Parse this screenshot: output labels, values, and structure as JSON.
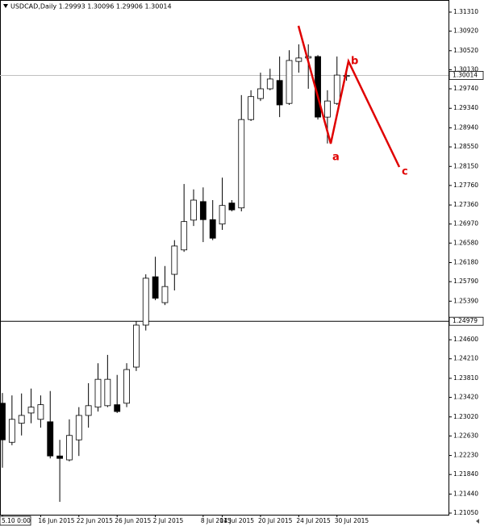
{
  "chart_data": {
    "type": "candlestick",
    "title": "USDCAD,Daily 1.29993 1.30096 1.29906 1.30014",
    "categories": [
      "5.10 0:00",
      null,
      null,
      null,
      "16 Jun 2015",
      null,
      null,
      null,
      "22 Jun 2015",
      null,
      null,
      null,
      "26 Jun 2015",
      null,
      null,
      null,
      "2 Jul 2015",
      null,
      null,
      null,
      null,
      "8 Jul 2015",
      null,
      "14 Jul 2015",
      null,
      null,
      null,
      "20 Jul 2015",
      null,
      null,
      null,
      "24 Jul 2015",
      null,
      null,
      null,
      "30 Jul 2015",
      null
    ],
    "open": [
      1.233,
      1.225,
      1.2289,
      1.231,
      1.2297,
      1.2292,
      1.2222,
      1.2214,
      1.2255,
      1.2305,
      1.2322,
      1.2325,
      1.2327,
      1.233,
      1.2404,
      1.249,
      1.2589,
      1.2536,
      1.2594,
      1.2644,
      1.2705,
      1.2743,
      1.2706,
      1.2697,
      1.274,
      1.273,
      1.2911,
      1.2954,
      1.2974,
      1.2991,
      1.2944,
      1.303,
      1.3037,
      1.304,
      1.2916,
      1.2944,
      1.29993
    ],
    "high": [
      1.2351,
      1.2346,
      1.235,
      1.236,
      1.2346,
      1.2355,
      1.2255,
      1.2297,
      1.2322,
      1.2371,
      1.2412,
      1.2429,
      1.2388,
      1.2412,
      1.2498,
      1.2594,
      1.263,
      1.2611,
      1.2664,
      1.2779,
      1.2768,
      1.2772,
      1.2746,
      1.2792,
      1.2746,
      1.2961,
      1.2971,
      1.3007,
      1.3015,
      1.304,
      1.3053,
      1.3065,
      1.3065,
      1.3043,
      1.2971,
      1.304,
      1.30096
    ],
    "low": [
      1.2198,
      1.2244,
      1.2264,
      1.2289,
      1.228,
      1.2217,
      1.2128,
      1.2211,
      1.2222,
      1.228,
      1.2313,
      1.2322,
      1.231,
      1.2322,
      1.2396,
      1.2479,
      1.2541,
      1.2531,
      1.2561,
      1.264,
      1.2693,
      1.266,
      1.2664,
      1.2685,
      1.2723,
      1.2723,
      1.2908,
      1.2949,
      1.2971,
      1.2916,
      1.2941,
      1.3007,
      1.2974,
      1.2911,
      1.2862,
      1.2941,
      1.29906
    ],
    "close": [
      1.2255,
      1.2297,
      1.2305,
      1.2322,
      1.2327,
      1.2222,
      1.2217,
      1.2264,
      1.2305,
      1.2325,
      1.2379,
      1.2379,
      1.2313,
      1.2399,
      1.249,
      1.2586,
      1.2545,
      1.2569,
      1.2652,
      1.2702,
      1.2746,
      1.2706,
      1.2668,
      1.2735,
      1.2726,
      1.2911,
      1.2958,
      1.2974,
      1.2994,
      1.2941,
      1.3032,
      1.3037,
      1.304,
      1.2916,
      1.2949,
      1.3002,
      1.30014
    ],
    "up_color": "#ffffff",
    "down_color": "#000000",
    "ylim": [
      1.21017,
      1.31558
    ],
    "yticks": [
      {
        "value": 1.3131,
        "label": "1.31310"
      },
      {
        "value": 1.3092,
        "label": "1.30920"
      },
      {
        "value": 1.3052,
        "label": "1.30520"
      },
      {
        "value": 1.3013,
        "label": "1.30130"
      },
      {
        "value": 1.2974,
        "label": "1.29740"
      },
      {
        "value": 1.2934,
        "label": "1.29340"
      },
      {
        "value": 1.2894,
        "label": "1.28940"
      },
      {
        "value": 1.2855,
        "label": "1.28550"
      },
      {
        "value": 1.2815,
        "label": "1.28150"
      },
      {
        "value": 1.2776,
        "label": "1.27760"
      },
      {
        "value": 1.2736,
        "label": "1.27360"
      },
      {
        "value": 1.2697,
        "label": "1.26970"
      },
      {
        "value": 1.2658,
        "label": "1.26580"
      },
      {
        "value": 1.2618,
        "label": "1.26180"
      },
      {
        "value": 1.2579,
        "label": "1.25790"
      },
      {
        "value": 1.2539,
        "label": "1.25390"
      },
      {
        "value": 1.246,
        "label": "1.24600"
      },
      {
        "value": 1.2421,
        "label": "1.24210"
      },
      {
        "value": 1.2381,
        "label": "1.23810"
      },
      {
        "value": 1.2342,
        "label": "1.23420"
      },
      {
        "value": 1.2302,
        "label": "1.23020"
      },
      {
        "value": 1.2263,
        "label": "1.22630"
      },
      {
        "value": 1.2223,
        "label": "1.22230"
      },
      {
        "value": 1.2184,
        "label": "1.21840"
      },
      {
        "value": 1.2144,
        "label": "1.21440"
      },
      {
        "value": 1.2105,
        "label": "1.21050"
      }
    ],
    "price_lines": [
      {
        "value": 1.30014,
        "color": "#c0c0c0"
      },
      {
        "value": 1.24979,
        "color": "#000000"
      }
    ],
    "annotations": [
      "a",
      "b",
      "c"
    ],
    "annotation_color": "#e00000"
  }
}
